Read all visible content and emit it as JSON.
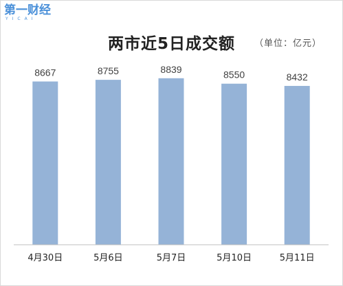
{
  "logo": {
    "text": "第一财经",
    "sub": "YICAI"
  },
  "chart_data": {
    "type": "bar",
    "title": "两市近5日成交额",
    "unit_label": "（单位：亿元）",
    "categories": [
      "4月30日",
      "5月6日",
      "5月7日",
      "5月10日",
      "5月11日"
    ],
    "values": [
      8667,
      8755,
      8839,
      8550,
      8432
    ],
    "series_color": "#95b3d7",
    "ylim": [
      0,
      10000
    ],
    "grid": false,
    "legend": "none"
  }
}
